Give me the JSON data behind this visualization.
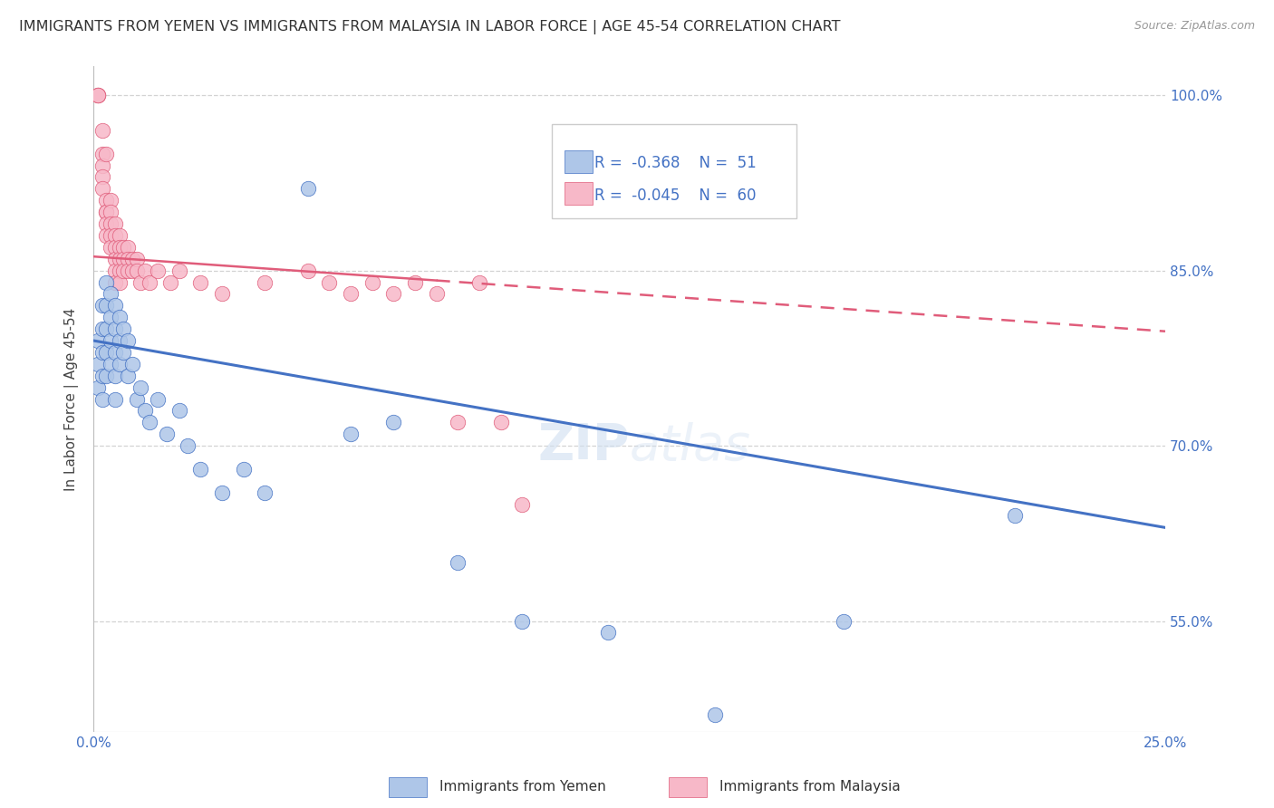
{
  "title": "IMMIGRANTS FROM YEMEN VS IMMIGRANTS FROM MALAYSIA IN LABOR FORCE | AGE 45-54 CORRELATION CHART",
  "source": "Source: ZipAtlas.com",
  "ylabel": "In Labor Force | Age 45-54",
  "xlim": [
    0.0,
    0.25
  ],
  "ylim": [
    0.455,
    1.025
  ],
  "yticks": [
    0.55,
    0.7,
    0.85,
    1.0
  ],
  "yticklabels": [
    "55.0%",
    "70.0%",
    "85.0%",
    "100.0%"
  ],
  "yemen_color": "#aec6e8",
  "malaysia_color": "#f7b8c8",
  "yemen_line_color": "#4472c4",
  "malaysia_line_color": "#e05c7a",
  "legend_R_yemen": "-0.368",
  "legend_N_yemen": "51",
  "legend_R_malaysia": "-0.045",
  "legend_N_malaysia": "60",
  "yemen_line_x0": 0.0,
  "yemen_line_y0": 0.79,
  "yemen_line_x1": 0.25,
  "yemen_line_y1": 0.63,
  "malaysia_line_x0": 0.0,
  "malaysia_line_y0": 0.862,
  "malaysia_line_x1": 0.25,
  "malaysia_line_y1": 0.798,
  "yemen_scatter_x": [
    0.001,
    0.001,
    0.001,
    0.002,
    0.002,
    0.002,
    0.002,
    0.002,
    0.003,
    0.003,
    0.003,
    0.003,
    0.003,
    0.004,
    0.004,
    0.004,
    0.004,
    0.005,
    0.005,
    0.005,
    0.005,
    0.005,
    0.006,
    0.006,
    0.006,
    0.007,
    0.007,
    0.008,
    0.008,
    0.009,
    0.01,
    0.011,
    0.012,
    0.013,
    0.015,
    0.017,
    0.02,
    0.022,
    0.025,
    0.03,
    0.035,
    0.04,
    0.05,
    0.06,
    0.07,
    0.085,
    0.1,
    0.12,
    0.145,
    0.175,
    0.215
  ],
  "yemen_scatter_y": [
    0.79,
    0.75,
    0.77,
    0.82,
    0.8,
    0.78,
    0.76,
    0.74,
    0.84,
    0.82,
    0.8,
    0.78,
    0.76,
    0.83,
    0.81,
    0.79,
    0.77,
    0.82,
    0.8,
    0.78,
    0.76,
    0.74,
    0.81,
    0.79,
    0.77,
    0.8,
    0.78,
    0.79,
    0.76,
    0.77,
    0.74,
    0.75,
    0.73,
    0.72,
    0.74,
    0.71,
    0.73,
    0.7,
    0.68,
    0.66,
    0.68,
    0.66,
    0.92,
    0.71,
    0.72,
    0.6,
    0.55,
    0.54,
    0.47,
    0.55,
    0.64
  ],
  "malaysia_scatter_x": [
    0.001,
    0.001,
    0.001,
    0.002,
    0.002,
    0.002,
    0.002,
    0.002,
    0.003,
    0.003,
    0.003,
    0.003,
    0.003,
    0.003,
    0.004,
    0.004,
    0.004,
    0.004,
    0.004,
    0.005,
    0.005,
    0.005,
    0.005,
    0.005,
    0.005,
    0.006,
    0.006,
    0.006,
    0.006,
    0.006,
    0.007,
    0.007,
    0.007,
    0.008,
    0.008,
    0.008,
    0.009,
    0.009,
    0.01,
    0.01,
    0.011,
    0.012,
    0.013,
    0.015,
    0.018,
    0.02,
    0.025,
    0.03,
    0.04,
    0.05,
    0.055,
    0.06,
    0.065,
    0.07,
    0.075,
    0.08,
    0.085,
    0.09,
    0.095,
    0.1
  ],
  "malaysia_scatter_y": [
    1.0,
    1.0,
    1.0,
    0.97,
    0.95,
    0.94,
    0.93,
    0.92,
    0.91,
    0.9,
    0.9,
    0.89,
    0.88,
    0.95,
    0.91,
    0.9,
    0.89,
    0.88,
    0.87,
    0.89,
    0.88,
    0.87,
    0.86,
    0.85,
    0.84,
    0.88,
    0.87,
    0.86,
    0.85,
    0.84,
    0.87,
    0.86,
    0.85,
    0.87,
    0.86,
    0.85,
    0.86,
    0.85,
    0.86,
    0.85,
    0.84,
    0.85,
    0.84,
    0.85,
    0.84,
    0.85,
    0.84,
    0.83,
    0.84,
    0.85,
    0.84,
    0.83,
    0.84,
    0.83,
    0.84,
    0.83,
    0.72,
    0.84,
    0.72,
    0.65
  ],
  "background_color": "#ffffff",
  "grid_color": "#d3d3d3"
}
